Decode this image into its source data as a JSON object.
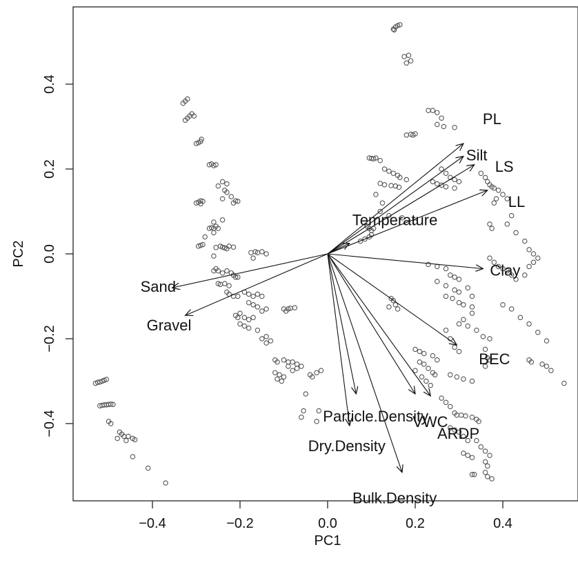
{
  "chart_data": {
    "type": "scatter",
    "subtype": "biplot",
    "title": "",
    "xlabel": "PC1",
    "ylabel": "PC2",
    "xlim": [
      -0.58,
      0.58
    ],
    "ylim": [
      -0.58,
      0.58
    ],
    "xticks": [
      -0.4,
      -0.2,
      0.0,
      0.2,
      0.4
    ],
    "xtick_labels": [
      "−0.4",
      "−0.2",
      "0.0",
      "0.2",
      "0.4"
    ],
    "yticks": [
      -0.4,
      -0.2,
      0.0,
      0.2,
      0.4
    ],
    "ytick_labels": [
      "−0.4",
      "−0.2",
      "0.0",
      "0.2",
      "0.4"
    ],
    "grid": false,
    "colors": {
      "points": "#555555",
      "arrows": "#111111"
    },
    "loadings": [
      {
        "name": "PL",
        "x": 0.31,
        "y": 0.26
      },
      {
        "name": "Silt",
        "x": 0.31,
        "y": 0.23
      },
      {
        "name": "LS",
        "x": 0.335,
        "y": 0.21
      },
      {
        "name": "LL",
        "x": 0.365,
        "y": 0.15
      },
      {
        "name": "Temperature",
        "x": 0.05,
        "y": 0.025
      },
      {
        "name": "Clay",
        "x": 0.355,
        "y": -0.035
      },
      {
        "name": "BEC",
        "x": 0.295,
        "y": -0.215
      },
      {
        "name": "VWC",
        "x": 0.235,
        "y": -0.335
      },
      {
        "name": "ARDP",
        "x": 0.2,
        "y": -0.33
      },
      {
        "name": "Particle.Density",
        "x": 0.065,
        "y": -0.33
      },
      {
        "name": "Dry.Density",
        "x": 0.05,
        "y": -0.405
      },
      {
        "name": "Bulk.Density",
        "x": 0.17,
        "y": -0.515
      },
      {
        "name": "Sand",
        "x": -0.355,
        "y": -0.08
      },
      {
        "name": "Gravel",
        "x": -0.325,
        "y": -0.145
      }
    ],
    "scores": [
      [
        0.15,
        0.53
      ],
      [
        0.155,
        0.535
      ],
      [
        0.16,
        0.538
      ],
      [
        0.165,
        0.54
      ],
      [
        0.152,
        0.528
      ],
      [
        0.175,
        0.465
      ],
      [
        0.185,
        0.468
      ],
      [
        0.19,
        0.455
      ],
      [
        0.18,
        0.45
      ],
      [
        0.23,
        0.338
      ],
      [
        0.24,
        0.338
      ],
      [
        0.25,
        0.333
      ],
      [
        0.26,
        0.32
      ],
      [
        0.25,
        0.305
      ],
      [
        0.265,
        0.3
      ],
      [
        0.29,
        0.298
      ],
      [
        0.18,
        0.28
      ],
      [
        0.19,
        0.282
      ],
      [
        0.195,
        0.28
      ],
      [
        0.2,
        0.283
      ],
      [
        0.095,
        0.226
      ],
      [
        0.1,
        0.225
      ],
      [
        0.105,
        0.224
      ],
      [
        0.11,
        0.226
      ],
      [
        0.12,
        0.22
      ],
      [
        0.13,
        0.2
      ],
      [
        0.14,
        0.195
      ],
      [
        0.15,
        0.19
      ],
      [
        0.16,
        0.185
      ],
      [
        0.165,
        0.18
      ],
      [
        0.18,
        0.175
      ],
      [
        0.12,
        0.166
      ],
      [
        0.13,
        0.163
      ],
      [
        0.145,
        0.161
      ],
      [
        0.155,
        0.16
      ],
      [
        0.163,
        0.157
      ],
      [
        0.26,
        0.2
      ],
      [
        0.27,
        0.19
      ],
      [
        0.28,
        0.18
      ],
      [
        0.29,
        0.175
      ],
      [
        0.3,
        0.17
      ],
      [
        0.24,
        0.17
      ],
      [
        0.25,
        0.165
      ],
      [
        0.26,
        0.162
      ],
      [
        0.27,
        0.158
      ],
      [
        0.29,
        0.155
      ],
      [
        0.35,
        0.19
      ],
      [
        0.36,
        0.18
      ],
      [
        0.365,
        0.17
      ],
      [
        0.37,
        0.163
      ],
      [
        0.375,
        0.158
      ],
      [
        0.38,
        0.155
      ],
      [
        0.39,
        0.15
      ],
      [
        0.4,
        0.14
      ],
      [
        0.385,
        0.13
      ],
      [
        0.38,
        0.12
      ],
      [
        0.41,
        0.13
      ],
      [
        0.11,
        0.14
      ],
      [
        0.125,
        0.12
      ],
      [
        0.12,
        0.1
      ],
      [
        0.14,
        0.09
      ],
      [
        0.17,
        0.085
      ],
      [
        0.2,
        0.075
      ],
      [
        0.09,
        0.065
      ],
      [
        0.095,
        0.06
      ],
      [
        0.1,
        0.055
      ],
      [
        0.105,
        0.06
      ],
      [
        0.1,
        0.045
      ],
      [
        0.095,
        0.04
      ],
      [
        0.085,
        0.035
      ],
      [
        0.075,
        0.03
      ],
      [
        0.42,
        0.09
      ],
      [
        0.41,
        0.07
      ],
      [
        0.37,
        0.07
      ],
      [
        0.375,
        0.06
      ],
      [
        0.43,
        0.05
      ],
      [
        0.45,
        0.03
      ],
      [
        0.46,
        0.01
      ],
      [
        0.47,
        0.0
      ],
      [
        0.48,
        -0.01
      ],
      [
        0.47,
        -0.02
      ],
      [
        0.46,
        -0.03
      ],
      [
        0.45,
        -0.05
      ],
      [
        0.37,
        -0.01
      ],
      [
        0.38,
        -0.02
      ],
      [
        0.39,
        -0.03
      ],
      [
        0.4,
        -0.035
      ],
      [
        0.41,
        -0.04
      ],
      [
        0.42,
        -0.05
      ],
      [
        0.43,
        -0.06
      ],
      [
        0.23,
        -0.025
      ],
      [
        0.25,
        -0.03
      ],
      [
        0.27,
        -0.035
      ],
      [
        0.28,
        -0.05
      ],
      [
        0.29,
        -0.055
      ],
      [
        0.3,
        -0.06
      ],
      [
        0.25,
        -0.065
      ],
      [
        0.27,
        -0.075
      ],
      [
        0.29,
        -0.085
      ],
      [
        0.3,
        -0.09
      ],
      [
        0.32,
        -0.08
      ],
      [
        0.33,
        -0.1
      ],
      [
        0.27,
        -0.1
      ],
      [
        0.285,
        -0.105
      ],
      [
        0.3,
        -0.115
      ],
      [
        0.31,
        -0.12
      ],
      [
        0.33,
        -0.125
      ],
      [
        0.145,
        -0.105
      ],
      [
        0.15,
        -0.11
      ],
      [
        0.155,
        -0.12
      ],
      [
        0.14,
        -0.125
      ],
      [
        0.16,
        -0.13
      ],
      [
        0.33,
        -0.14
      ],
      [
        0.31,
        -0.155
      ],
      [
        0.3,
        -0.165
      ],
      [
        0.32,
        -0.17
      ],
      [
        0.34,
        -0.18
      ],
      [
        0.27,
        -0.18
      ],
      [
        0.28,
        -0.2
      ],
      [
        0.29,
        -0.22
      ],
      [
        0.3,
        -0.23
      ],
      [
        0.355,
        -0.195
      ],
      [
        0.37,
        -0.2
      ],
      [
        0.36,
        -0.225
      ],
      [
        0.365,
        -0.245
      ],
      [
        0.37,
        -0.25
      ],
      [
        0.36,
        -0.265
      ],
      [
        0.4,
        -0.12
      ],
      [
        0.42,
        -0.13
      ],
      [
        0.44,
        -0.15
      ],
      [
        0.46,
        -0.165
      ],
      [
        0.48,
        -0.185
      ],
      [
        0.5,
        -0.205
      ],
      [
        0.46,
        -0.25
      ],
      [
        0.465,
        -0.255
      ],
      [
        0.49,
        -0.26
      ],
      [
        0.5,
        -0.265
      ],
      [
        0.51,
        -0.275
      ],
      [
        0.54,
        -0.305
      ],
      [
        0.2,
        -0.225
      ],
      [
        0.21,
        -0.23
      ],
      [
        0.22,
        -0.235
      ],
      [
        0.24,
        -0.24
      ],
      [
        0.25,
        -0.25
      ],
      [
        0.21,
        -0.255
      ],
      [
        0.22,
        -0.26
      ],
      [
        0.23,
        -0.27
      ],
      [
        0.24,
        -0.28
      ],
      [
        0.245,
        -0.285
      ],
      [
        0.2,
        -0.275
      ],
      [
        0.215,
        -0.29
      ],
      [
        0.225,
        -0.3
      ],
      [
        0.235,
        -0.31
      ],
      [
        0.28,
        -0.285
      ],
      [
        0.295,
        -0.29
      ],
      [
        0.31,
        -0.295
      ],
      [
        0.33,
        -0.3
      ],
      [
        0.26,
        -0.34
      ],
      [
        0.27,
        -0.35
      ],
      [
        0.28,
        -0.36
      ],
      [
        0.29,
        -0.375
      ],
      [
        0.295,
        -0.38
      ],
      [
        0.305,
        -0.38
      ],
      [
        0.315,
        -0.382
      ],
      [
        0.33,
        -0.385
      ],
      [
        0.34,
        -0.39
      ],
      [
        0.345,
        -0.395
      ],
      [
        0.28,
        -0.41
      ],
      [
        0.29,
        -0.415
      ],
      [
        0.3,
        -0.42
      ],
      [
        0.31,
        -0.43
      ],
      [
        0.32,
        -0.44
      ],
      [
        0.34,
        -0.44
      ],
      [
        0.35,
        -0.455
      ],
      [
        0.36,
        -0.465
      ],
      [
        0.37,
        -0.475
      ],
      [
        0.31,
        -0.47
      ],
      [
        0.32,
        -0.475
      ],
      [
        0.33,
        -0.48
      ],
      [
        0.36,
        -0.49
      ],
      [
        0.365,
        -0.5
      ],
      [
        0.33,
        -0.52
      ],
      [
        0.335,
        -0.52
      ],
      [
        0.36,
        -0.515
      ],
      [
        0.365,
        -0.525
      ],
      [
        0.375,
        -0.53
      ],
      [
        -0.08,
        -0.255
      ],
      [
        -0.07,
        -0.26
      ],
      [
        -0.06,
        -0.265
      ],
      [
        -0.07,
        -0.27
      ],
      [
        -0.08,
        -0.275
      ],
      [
        -0.09,
        -0.265
      ],
      [
        -0.04,
        -0.285
      ],
      [
        -0.035,
        -0.29
      ],
      [
        -0.025,
        -0.28
      ],
      [
        -0.015,
        -0.275
      ],
      [
        -0.05,
        -0.33
      ],
      [
        -0.055,
        -0.37
      ],
      [
        -0.06,
        -0.385
      ],
      [
        -0.02,
        -0.37
      ],
      [
        -0.025,
        -0.395
      ],
      [
        -0.12,
        -0.25
      ],
      [
        -0.115,
        -0.255
      ],
      [
        -0.1,
        -0.25
      ],
      [
        -0.09,
        -0.255
      ],
      [
        -0.12,
        -0.28
      ],
      [
        -0.11,
        -0.285
      ],
      [
        -0.1,
        -0.29
      ],
      [
        -0.105,
        -0.3
      ],
      [
        -0.115,
        -0.295
      ],
      [
        -0.1,
        -0.13
      ],
      [
        -0.095,
        -0.135
      ],
      [
        -0.09,
        -0.13
      ],
      [
        -0.085,
        -0.128
      ],
      [
        -0.075,
        -0.127
      ],
      [
        -0.17,
        -0.01
      ],
      [
        -0.165,
        0.005
      ],
      [
        -0.16,
        0.003
      ],
      [
        -0.15,
        0.005
      ],
      [
        -0.14,
        0.0
      ],
      [
        -0.175,
        0.003
      ],
      [
        -0.18,
        -0.095
      ],
      [
        -0.17,
        -0.1
      ],
      [
        -0.16,
        -0.095
      ],
      [
        -0.15,
        -0.1
      ],
      [
        -0.17,
        -0.12
      ],
      [
        -0.16,
        -0.125
      ],
      [
        -0.15,
        -0.135
      ],
      [
        -0.14,
        -0.13
      ],
      [
        -0.18,
        -0.115
      ],
      [
        -0.19,
        -0.09
      ],
      [
        -0.21,
        -0.145
      ],
      [
        -0.205,
        -0.15
      ],
      [
        -0.2,
        -0.14
      ],
      [
        -0.19,
        -0.15
      ],
      [
        -0.18,
        -0.155
      ],
      [
        -0.17,
        -0.15
      ],
      [
        -0.2,
        -0.165
      ],
      [
        -0.19,
        -0.17
      ],
      [
        -0.18,
        -0.175
      ],
      [
        -0.16,
        -0.18
      ],
      [
        -0.15,
        -0.2
      ],
      [
        -0.14,
        -0.21
      ],
      [
        -0.13,
        -0.205
      ],
      [
        -0.14,
        -0.195
      ],
      [
        -0.23,
        -0.09
      ],
      [
        -0.225,
        -0.095
      ],
      [
        -0.215,
        -0.1
      ],
      [
        -0.205,
        -0.1
      ],
      [
        -0.26,
        -0.04
      ],
      [
        -0.255,
        -0.035
      ],
      [
        -0.25,
        -0.04
      ],
      [
        -0.24,
        -0.045
      ],
      [
        -0.23,
        -0.04
      ],
      [
        -0.22,
        -0.045
      ],
      [
        -0.215,
        -0.05
      ],
      [
        -0.21,
        -0.055
      ],
      [
        -0.205,
        -0.055
      ],
      [
        -0.25,
        -0.07
      ],
      [
        -0.245,
        -0.072
      ],
      [
        -0.235,
        -0.07
      ],
      [
        -0.225,
        -0.075
      ],
      [
        -0.26,
        -0.005
      ],
      [
        -0.255,
        0.015
      ],
      [
        -0.245,
        0.018
      ],
      [
        -0.24,
        0.016
      ],
      [
        -0.235,
        0.014
      ],
      [
        -0.225,
        0.018
      ],
      [
        -0.215,
        0.016
      ],
      [
        -0.23,
        0.012
      ],
      [
        -0.29,
        0.02
      ],
      [
        -0.295,
        0.018
      ],
      [
        -0.285,
        0.022
      ],
      [
        -0.27,
        0.06
      ],
      [
        -0.265,
        0.062
      ],
      [
        -0.26,
        0.06
      ],
      [
        -0.255,
        0.065
      ],
      [
        -0.25,
        0.06
      ],
      [
        -0.26,
        0.05
      ],
      [
        -0.28,
        0.04
      ],
      [
        -0.26,
        0.075
      ],
      [
        -0.24,
        0.08
      ],
      [
        -0.3,
        0.12
      ],
      [
        -0.295,
        0.122
      ],
      [
        -0.29,
        0.125
      ],
      [
        -0.29,
        0.118
      ],
      [
        -0.285,
        0.124
      ],
      [
        -0.24,
        0.13
      ],
      [
        -0.235,
        0.15
      ],
      [
        -0.23,
        0.145
      ],
      [
        -0.22,
        0.135
      ],
      [
        -0.215,
        0.12
      ],
      [
        -0.21,
        0.125
      ],
      [
        -0.205,
        0.124
      ],
      [
        -0.25,
        0.16
      ],
      [
        -0.24,
        0.17
      ],
      [
        -0.23,
        0.165
      ],
      [
        -0.27,
        0.21
      ],
      [
        -0.265,
        0.212
      ],
      [
        -0.26,
        0.208
      ],
      [
        -0.255,
        0.21
      ],
      [
        -0.3,
        0.26
      ],
      [
        -0.295,
        0.262
      ],
      [
        -0.29,
        0.265
      ],
      [
        -0.288,
        0.27
      ],
      [
        -0.32,
        0.32
      ],
      [
        -0.315,
        0.325
      ],
      [
        -0.31,
        0.33
      ],
      [
        -0.305,
        0.325
      ],
      [
        -0.325,
        0.315
      ],
      [
        -0.33,
        0.355
      ],
      [
        -0.325,
        0.36
      ],
      [
        -0.32,
        0.365
      ],
      [
        -0.53,
        -0.305
      ],
      [
        -0.525,
        -0.303
      ],
      [
        -0.52,
        -0.302
      ],
      [
        -0.515,
        -0.3
      ],
      [
        -0.51,
        -0.298
      ],
      [
        -0.505,
        -0.296
      ],
      [
        -0.52,
        -0.358
      ],
      [
        -0.515,
        -0.357
      ],
      [
        -0.51,
        -0.356
      ],
      [
        -0.505,
        -0.356
      ],
      [
        -0.5,
        -0.355
      ],
      [
        -0.495,
        -0.354
      ],
      [
        -0.49,
        -0.355
      ],
      [
        -0.5,
        -0.395
      ],
      [
        -0.495,
        -0.4
      ],
      [
        -0.475,
        -0.42
      ],
      [
        -0.47,
        -0.425
      ],
      [
        -0.48,
        -0.435
      ],
      [
        -0.465,
        -0.43
      ],
      [
        -0.455,
        -0.43
      ],
      [
        -0.46,
        -0.44
      ],
      [
        -0.445,
        -0.435
      ],
      [
        -0.44,
        -0.438
      ],
      [
        -0.445,
        -0.478
      ],
      [
        -0.41,
        -0.505
      ],
      [
        -0.37,
        -0.54
      ]
    ]
  }
}
